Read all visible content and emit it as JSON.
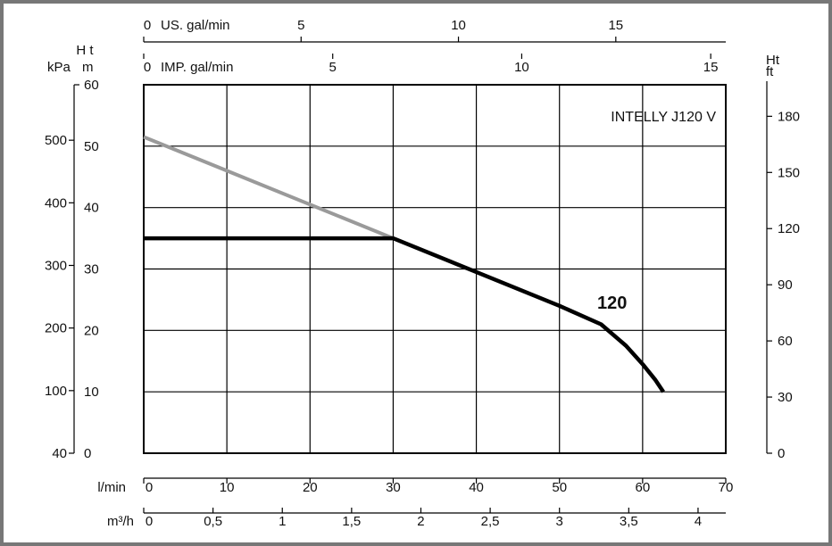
{
  "chart_data": {
    "type": "line",
    "title": "INTELLY J120 V",
    "x_axes": {
      "primary": {
        "label": "l/min",
        "ticks": [
          "0",
          "10",
          "20",
          "30",
          "40",
          "50",
          "60",
          "70"
        ],
        "range": [
          0,
          70
        ]
      },
      "m3h": {
        "label": "m³/h",
        "ticks": [
          "0",
          "0,5",
          "1",
          "1,5",
          "2",
          "2,5",
          "3",
          "3,5",
          "4"
        ]
      },
      "us_gal": {
        "label": "US. gal/min",
        "ticks": [
          "0",
          "5",
          "10",
          "15"
        ]
      },
      "imp_gal": {
        "label": "IMP. gal/min",
        "ticks": [
          "0",
          "5",
          "10",
          "15"
        ]
      }
    },
    "y_axes": {
      "header": "H t",
      "m": {
        "label": "m",
        "ticks": [
          "0",
          "10",
          "20",
          "30",
          "40",
          "50",
          "60"
        ],
        "range": [
          0,
          60
        ]
      },
      "kpa": {
        "label": "kPa",
        "ticks": [
          "40",
          "100",
          "200",
          "300",
          "400",
          "500"
        ]
      },
      "ft": {
        "label_top": "Ht",
        "label": "ft",
        "ticks": [
          "0",
          "30",
          "60",
          "90",
          "120",
          "150",
          "180"
        ]
      }
    },
    "grid": true,
    "series": [
      {
        "name": "120",
        "color": "#000000",
        "x": [
          0,
          30,
          40,
          50,
          55,
          58,
          60,
          61.5,
          62.5
        ],
        "y": [
          35,
          35,
          29.5,
          24,
          21,
          17.5,
          14.5,
          12,
          10
        ]
      },
      {
        "color": "#9a9a9a",
        "x": [
          0,
          30
        ],
        "y": [
          51.5,
          35
        ]
      }
    ]
  }
}
